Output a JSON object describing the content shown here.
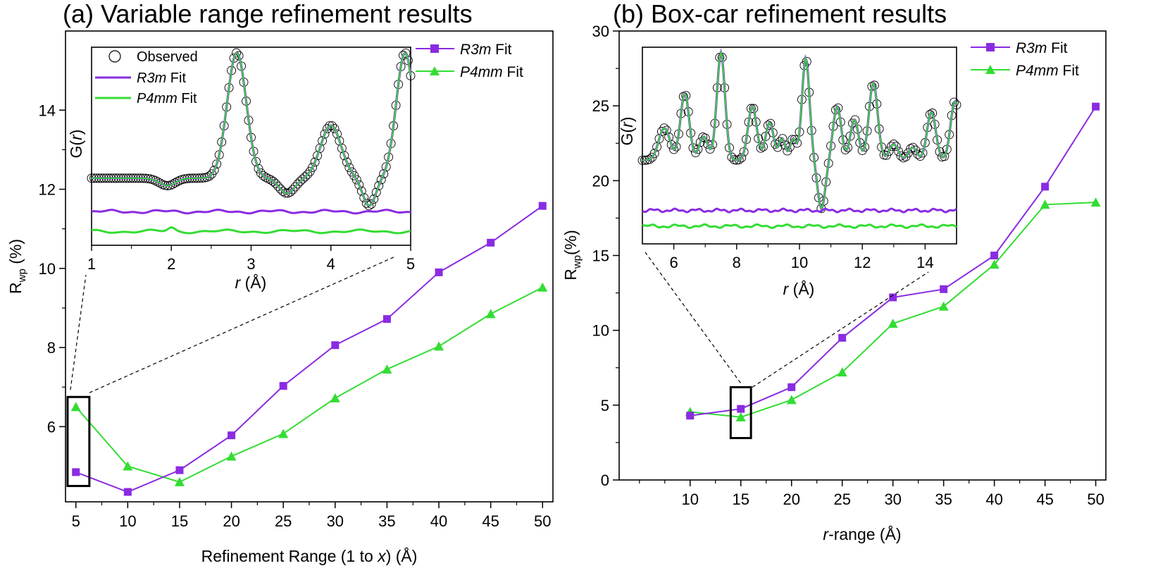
{
  "colors": {
    "r3m": "#8a2be2",
    "p4mm": "#33dd33",
    "axis": "#000000",
    "observed": "#000000"
  },
  "chart_data": [
    {
      "id": "a",
      "type": "line",
      "title": "(a) Variable range refinement results",
      "xlabel_pre": "Refinement Range (1 to ",
      "xlabel_var": "x",
      "xlabel_post": ") (Å)",
      "ylabel_main": "R",
      "ylabel_sub": "wp",
      "ylabel_unit": " (%)",
      "xlim": [
        4,
        51
      ],
      "ylim": [
        4.1,
        16.0
      ],
      "xticks": [
        5,
        10,
        15,
        20,
        25,
        30,
        35,
        40,
        45,
        50
      ],
      "yticks": [
        6,
        8,
        10,
        12,
        14
      ],
      "x": [
        5,
        10,
        15,
        20,
        25,
        30,
        35,
        40,
        45,
        50
      ],
      "series": [
        {
          "key": "r3m",
          "name_italic": "R3m",
          "name_rest": " Fit",
          "marker": "square",
          "values": [
            4.85,
            4.35,
            4.9,
            5.78,
            7.03,
            8.06,
            8.72,
            9.9,
            10.65,
            11.58
          ]
        },
        {
          "key": "p4mm",
          "name_italic": "P4mm",
          "name_rest": " Fit",
          "marker": "triangle",
          "values": [
            6.5,
            5.0,
            4.6,
            5.25,
            5.82,
            6.72,
            7.45,
            8.03,
            8.85,
            9.52
          ]
        }
      ],
      "highlight": {
        "x": [
          4.2,
          6.3
        ],
        "y": [
          4.5,
          6.75
        ]
      },
      "inset": {
        "xlabel_var": "r",
        "xlabel_post": " (Å)",
        "ylabel_pre": "G(",
        "ylabel_var": "r",
        "ylabel_post": ")",
        "xlim": [
          1,
          5
        ],
        "xticks": [
          1,
          2,
          3,
          4,
          5
        ],
        "legend": [
          {
            "key": "observed",
            "italic": "",
            "rest": "Observed"
          },
          {
            "key": "r3m",
            "italic": "R3m",
            "rest": " Fit"
          },
          {
            "key": "p4mm",
            "italic": "P4mm",
            "rest": " Fit"
          }
        ],
        "peaks": [
          {
            "r": 1.95,
            "amp": -0.06,
            "w": 0.1
          },
          {
            "r": 2.82,
            "amp": 1.0,
            "w": 0.12
          },
          {
            "r": 3.45,
            "amp": -0.12,
            "w": 0.1
          },
          {
            "r": 4.0,
            "amp": 0.42,
            "w": 0.13
          },
          {
            "r": 4.48,
            "amp": -0.22,
            "w": 0.08
          },
          {
            "r": 4.93,
            "amp": 1.0,
            "w": 0.11
          }
        ]
      }
    },
    {
      "id": "b",
      "type": "line",
      "title": "(b) Box-car refinement results",
      "xlabel_pre": "",
      "xlabel_var": "r",
      "xlabel_post": "-range (Å)",
      "ylabel_main": "R",
      "ylabel_sub": "wp",
      "ylabel_unit": "(%)",
      "xlim": [
        3,
        51
      ],
      "ylim": [
        0,
        30
      ],
      "xticks": [
        10,
        15,
        20,
        25,
        30,
        35,
        40,
        45,
        50
      ],
      "yticks": [
        0,
        5,
        10,
        15,
        20,
        25,
        30
      ],
      "x": [
        10,
        15,
        20,
        25,
        30,
        35,
        40,
        45,
        50
      ],
      "series": [
        {
          "key": "r3m",
          "name_italic": "R3m",
          "name_rest": " Fit",
          "marker": "square",
          "values": [
            4.3,
            4.75,
            6.2,
            9.5,
            12.2,
            12.75,
            15.0,
            19.6,
            24.95
          ]
        },
        {
          "key": "p4mm",
          "name_italic": "P4mm",
          "name_rest": " Fit",
          "marker": "triangle",
          "values": [
            4.55,
            4.2,
            5.35,
            7.2,
            10.45,
            11.6,
            14.4,
            18.4,
            18.55
          ]
        }
      ],
      "highlight": {
        "x": [
          14.0,
          16.0
        ],
        "y": [
          2.8,
          6.2
        ]
      },
      "inset": {
        "xlabel_var": "r",
        "xlabel_post": " (Å)",
        "ylabel_pre": "G(",
        "ylabel_var": "r",
        "ylabel_post": ")",
        "xlim": [
          5,
          15
        ],
        "xticks": [
          6,
          8,
          10,
          12,
          14
        ],
        "peaks": [
          {
            "r": 5.7,
            "amp": 0.3,
            "w": 0.18
          },
          {
            "r": 6.35,
            "amp": 0.62,
            "w": 0.14
          },
          {
            "r": 6.95,
            "amp": 0.22,
            "w": 0.14
          },
          {
            "r": 7.5,
            "amp": 1.0,
            "w": 0.13
          },
          {
            "r": 8.5,
            "amp": 0.5,
            "w": 0.14
          },
          {
            "r": 9.05,
            "amp": 0.35,
            "w": 0.13
          },
          {
            "r": 9.45,
            "amp": 0.2,
            "w": 0.1
          },
          {
            "r": 9.8,
            "amp": 0.2,
            "w": 0.1
          },
          {
            "r": 10.2,
            "amp": 0.95,
            "w": 0.12
          },
          {
            "r": 10.7,
            "amp": -0.45,
            "w": 0.12
          },
          {
            "r": 11.2,
            "amp": 0.5,
            "w": 0.13
          },
          {
            "r": 11.75,
            "amp": 0.38,
            "w": 0.13
          },
          {
            "r": 12.35,
            "amp": 0.72,
            "w": 0.14
          },
          {
            "r": 13.0,
            "amp": 0.15,
            "w": 0.14
          },
          {
            "r": 13.6,
            "amp": 0.12,
            "w": 0.13
          },
          {
            "r": 14.2,
            "amp": 0.45,
            "w": 0.14
          },
          {
            "r": 14.95,
            "amp": 0.55,
            "w": 0.14
          }
        ]
      }
    }
  ]
}
